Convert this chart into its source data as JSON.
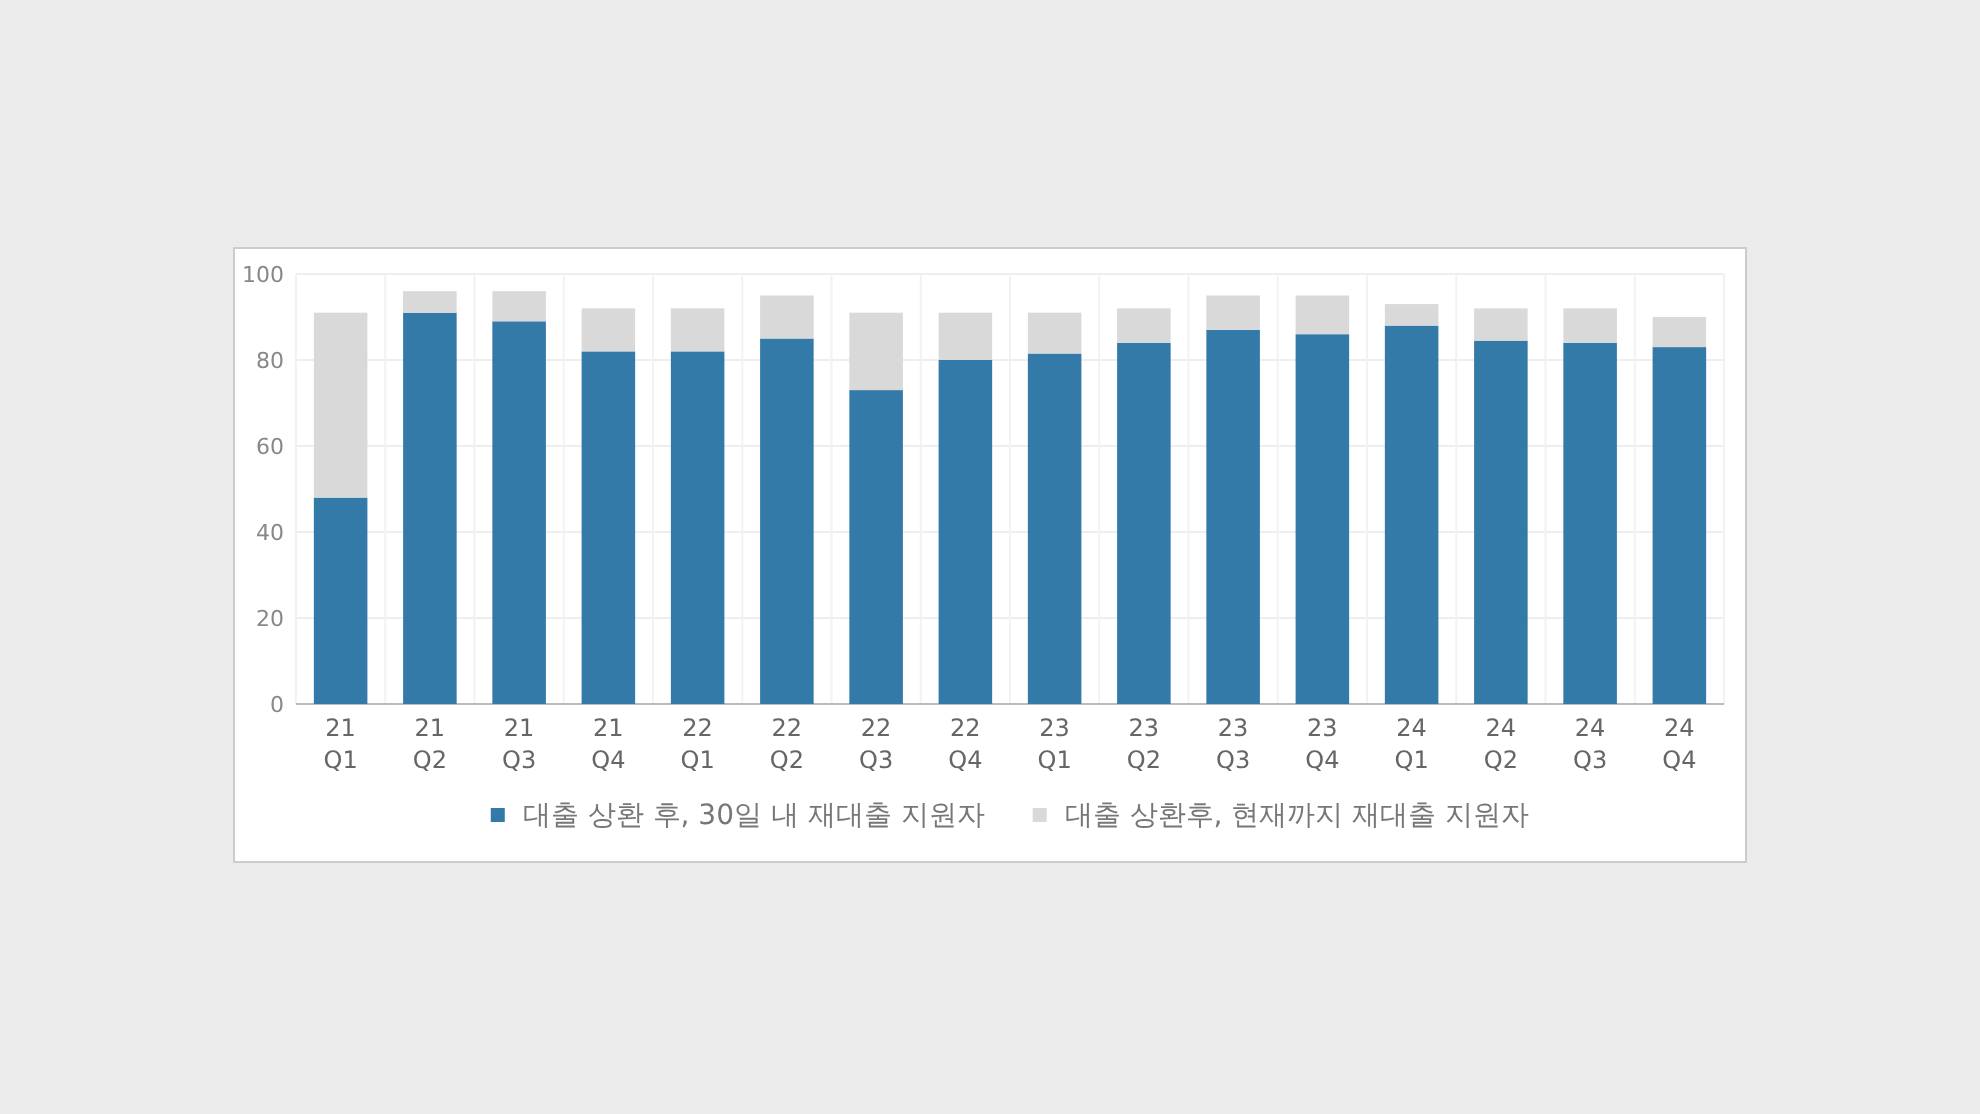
{
  "chart_data": {
    "type": "bar",
    "stacked": true,
    "categories": [
      "21\nQ1",
      "21\nQ2",
      "21\nQ3",
      "21\nQ4",
      "22\nQ1",
      "22\nQ2",
      "22\nQ3",
      "22\nQ4",
      "23\nQ1",
      "23\nQ2",
      "23\nQ3",
      "23\nQ4",
      "24\nQ1",
      "24\nQ2",
      "24\nQ3",
      "24\nQ4"
    ],
    "series": [
      {
        "name": "대출 상환 후, 30일 내 재대출 지원자",
        "color": "#337aa8",
        "values": [
          48,
          91,
          89,
          82,
          82,
          85,
          73,
          80,
          81.5,
          84,
          87,
          86,
          88,
          84.5,
          84,
          83
        ]
      },
      {
        "name": "대출 상환후, 현재까지 재대출 지원자",
        "color": "#d9d9d9",
        "values": [
          43,
          5,
          7,
          10,
          10,
          10,
          18,
          11,
          9.5,
          8,
          8,
          9,
          5,
          7.5,
          8,
          7
        ]
      }
    ],
    "ylim": [
      0,
      100
    ],
    "yticks": [
      0,
      20,
      40,
      60,
      80,
      100
    ],
    "grid": true,
    "legend": "bottom"
  }
}
